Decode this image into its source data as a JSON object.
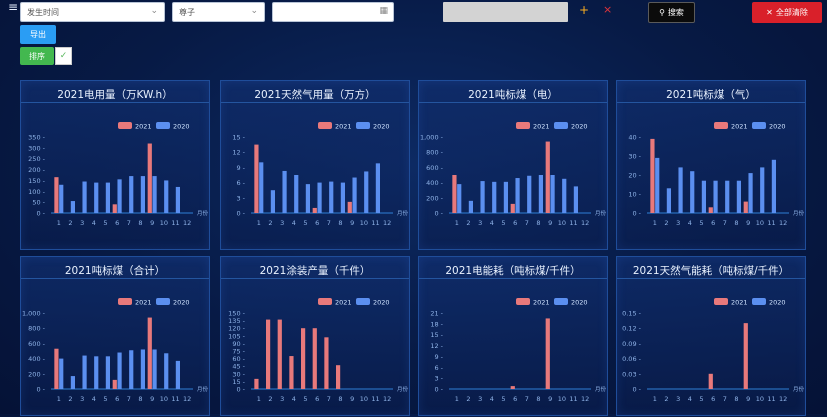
{
  "toolbar": {
    "filter1_value": "发生时间",
    "filter2_value": "尊子",
    "date_value": "",
    "search_label": "搜索",
    "clear_label": "全部清除",
    "export_label": "导出",
    "sort_label": "排序",
    "plus": "+",
    "close": "×",
    "menu": "≡",
    "check": "✓"
  },
  "colors": {
    "s2021": "#e8797b",
    "s2020": "#5b8ff0"
  },
  "chart_data": [
    {
      "title": "2021电用量（万KW.h）",
      "type": "bar",
      "categories": [
        "1",
        "2",
        "3",
        "4",
        "5",
        "6",
        "7",
        "8",
        "9",
        "10",
        "11",
        "12"
      ],
      "xunit": "月份",
      "ticks": [
        "0",
        "50",
        "100",
        "150",
        "200",
        "250",
        "300",
        "350"
      ],
      "ymax": 350,
      "series": [
        {
          "name": "2021",
          "values": [
            165,
            0,
            0,
            0,
            0,
            40,
            0,
            0,
            320,
            0,
            0,
            0
          ]
        },
        {
          "name": "2020",
          "values": [
            130,
            55,
            145,
            140,
            140,
            155,
            170,
            170,
            170,
            150,
            120,
            0
          ]
        }
      ]
    },
    {
      "title": "2021天然气用量（万方）",
      "type": "bar",
      "categories": [
        "1",
        "2",
        "3",
        "4",
        "5",
        "6",
        "7",
        "8",
        "9",
        "10",
        "11",
        "12"
      ],
      "xunit": "月份",
      "ticks": [
        "0",
        "3",
        "6",
        "9",
        "12",
        "15"
      ],
      "ymax": 15,
      "series": [
        {
          "name": "2021",
          "values": [
            13.5,
            0,
            0,
            0,
            0,
            1,
            0,
            0,
            2.2,
            0,
            0,
            0
          ]
        },
        {
          "name": "2020",
          "values": [
            10,
            4.5,
            8.3,
            7.5,
            5.7,
            6,
            6.2,
            6,
            7,
            8.2,
            9.8,
            0
          ]
        }
      ]
    },
    {
      "title": "2021吨标煤（电）",
      "type": "bar",
      "categories": [
        "1",
        "2",
        "3",
        "4",
        "5",
        "6",
        "7",
        "8",
        "9",
        "10",
        "11",
        "12"
      ],
      "xunit": "月份",
      "ticks": [
        "0",
        "200",
        "400",
        "600",
        "800",
        "1,000"
      ],
      "ymax": 1000,
      "series": [
        {
          "name": "2021",
          "values": [
            500,
            0,
            0,
            0,
            0,
            120,
            0,
            0,
            940,
            0,
            0,
            0
          ]
        },
        {
          "name": "2020",
          "values": [
            380,
            160,
            420,
            410,
            410,
            460,
            490,
            500,
            500,
            450,
            350,
            0
          ]
        }
      ]
    },
    {
      "title": "2021吨标煤（气）",
      "type": "bar",
      "categories": [
        "1",
        "2",
        "3",
        "4",
        "5",
        "6",
        "7",
        "8",
        "9",
        "10",
        "11",
        "12"
      ],
      "xunit": "月份",
      "ticks": [
        "0",
        "10",
        "20",
        "30",
        "40"
      ],
      "ymax": 40,
      "series": [
        {
          "name": "2021",
          "values": [
            39,
            0,
            0,
            0,
            0,
            3,
            0,
            0,
            6,
            0,
            0,
            0
          ]
        },
        {
          "name": "2020",
          "values": [
            29,
            13,
            24,
            22,
            17,
            17,
            17,
            17,
            21,
            24,
            28,
            0
          ]
        }
      ]
    },
    {
      "title": "2021吨标煤（合计）",
      "type": "bar",
      "categories": [
        "1",
        "2",
        "3",
        "4",
        "5",
        "6",
        "7",
        "8",
        "9",
        "10",
        "11",
        "12"
      ],
      "xunit": "月份",
      "ticks": [
        "0",
        "200",
        "400",
        "600",
        "800",
        "1,000"
      ],
      "ymax": 1000,
      "series": [
        {
          "name": "2021",
          "values": [
            530,
            0,
            0,
            0,
            0,
            120,
            0,
            0,
            940,
            0,
            0,
            0
          ]
        },
        {
          "name": "2020",
          "values": [
            400,
            170,
            440,
            430,
            430,
            480,
            510,
            520,
            520,
            470,
            370,
            0
          ]
        }
      ]
    },
    {
      "title": "2021涂装产量（千件）",
      "type": "bar",
      "categories": [
        "1",
        "2",
        "3",
        "4",
        "5",
        "6",
        "7",
        "8",
        "9",
        "10",
        "11",
        "12"
      ],
      "xunit": "月份",
      "ticks": [
        "0",
        "15",
        "30",
        "45",
        "60",
        "75",
        "90",
        "105",
        "120",
        "135",
        "150"
      ],
      "ymax": 150,
      "series": [
        {
          "name": "2021",
          "values": [
            20,
            137,
            137,
            65,
            120,
            120,
            102,
            47,
            0,
            0,
            0,
            0
          ]
        },
        {
          "name": "2020",
          "values": [
            0,
            0,
            0,
            0,
            0,
            0,
            0,
            0,
            0,
            0,
            0,
            0
          ]
        }
      ]
    },
    {
      "title": "2021电能耗（吨标煤/千件）",
      "type": "bar",
      "categories": [
        "1",
        "2",
        "3",
        "4",
        "5",
        "6",
        "7",
        "8",
        "9",
        "10",
        "11",
        "12"
      ],
      "xunit": "月份",
      "ticks": [
        "0",
        "3",
        "6",
        "9",
        "12",
        "15",
        "18",
        "21"
      ],
      "ymax": 21,
      "series": [
        {
          "name": "2021",
          "values": [
            0,
            0,
            0,
            0,
            0,
            0.8,
            0,
            0,
            19.5,
            0,
            0,
            0
          ]
        },
        {
          "name": "2020",
          "values": [
            0,
            0,
            0,
            0,
            0,
            0,
            0,
            0,
            0,
            0,
            0,
            0
          ]
        }
      ]
    },
    {
      "title": "2021天然气能耗（吨标煤/千件）",
      "type": "bar",
      "categories": [
        "1",
        "2",
        "3",
        "4",
        "5",
        "6",
        "7",
        "8",
        "9",
        "10",
        "11",
        "12"
      ],
      "xunit": "月份",
      "ticks": [
        "0",
        "0.03",
        "0.06",
        "0.09",
        "0.12",
        "0.15"
      ],
      "ymax": 0.15,
      "series": [
        {
          "name": "2021",
          "values": [
            0,
            0,
            0,
            0,
            0,
            0.03,
            0,
            0,
            0.13,
            0,
            0,
            0
          ]
        },
        {
          "name": "2020",
          "values": [
            0,
            0,
            0,
            0,
            0,
            0,
            0,
            0,
            0,
            0,
            0,
            0
          ]
        }
      ]
    }
  ]
}
